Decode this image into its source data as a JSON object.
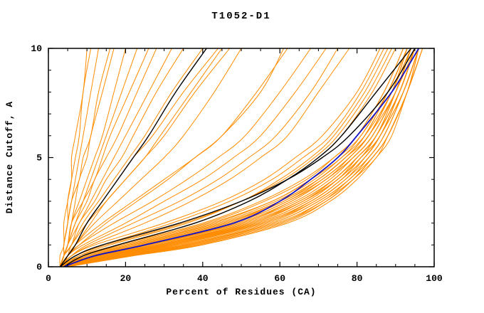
{
  "chart_data": {
    "type": "line",
    "title": "T1052-D1",
    "xlabel": "Percent of Residues (CA)",
    "ylabel": "Distance Cutoff, A",
    "xlim": [
      0,
      100
    ],
    "ylim": [
      0,
      10
    ],
    "x_ticks": [
      0,
      20,
      40,
      60,
      80,
      100
    ],
    "x_minor_step": 5,
    "y_ticks": [
      0,
      5,
      10
    ],
    "y_minor_step": 1,
    "grid": false,
    "legend": "none",
    "colors": {
      "orange": "#ff8c00",
      "black": "#000000",
      "blue": "#1212c8",
      "axis": "#000000",
      "background": "#ffffff"
    },
    "cutoffs": [
      0,
      0.5,
      1,
      2,
      3,
      4,
      5,
      6,
      8,
      10
    ],
    "series": {
      "orange_curves": [
        [
          4,
          14,
          28,
          52,
          65,
          74,
          80,
          85,
          91,
          95
        ],
        [
          4,
          12,
          25,
          48,
          62,
          71,
          78,
          83,
          89,
          94
        ],
        [
          4,
          16,
          32,
          55,
          68,
          76,
          82,
          86,
          92,
          96
        ],
        [
          3,
          10,
          22,
          45,
          60,
          70,
          77,
          82,
          88,
          93
        ],
        [
          5,
          18,
          35,
          58,
          70,
          78,
          83,
          87,
          92,
          96
        ],
        [
          4,
          13,
          27,
          50,
          64,
          73,
          79,
          84,
          90,
          95
        ],
        [
          4,
          15,
          30,
          54,
          67,
          75,
          81,
          85,
          91,
          95
        ],
        [
          3,
          9,
          20,
          42,
          58,
          68,
          75,
          81,
          88,
          93
        ],
        [
          5,
          20,
          38,
          60,
          72,
          79,
          84,
          88,
          93,
          97
        ],
        [
          4,
          11,
          24,
          47,
          61,
          71,
          78,
          83,
          90,
          94
        ],
        [
          4,
          17,
          33,
          56,
          69,
          77,
          82,
          86,
          92,
          96
        ],
        [
          3,
          8,
          18,
          40,
          55,
          66,
          74,
          80,
          87,
          92
        ],
        [
          5,
          22,
          40,
          62,
          73,
          80,
          85,
          89,
          93,
          97
        ],
        [
          4,
          14,
          29,
          53,
          66,
          75,
          81,
          85,
          91,
          95
        ],
        [
          4,
          12,
          26,
          49,
          63,
          72,
          79,
          84,
          90,
          94
        ],
        [
          3,
          10,
          21,
          44,
          59,
          69,
          76,
          82,
          89,
          93
        ],
        [
          5,
          19,
          36,
          59,
          71,
          78,
          84,
          88,
          93,
          96
        ],
        [
          4,
          16,
          31,
          55,
          68,
          76,
          82,
          86,
          91,
          95
        ],
        [
          4,
          13,
          28,
          51,
          65,
          74,
          80,
          85,
          90,
          94
        ],
        [
          3,
          11,
          23,
          46,
          61,
          70,
          77,
          83,
          89,
          94
        ],
        [
          5,
          21,
          39,
          61,
          72,
          79,
          85,
          88,
          93,
          97
        ],
        [
          4,
          15,
          31,
          54,
          67,
          75,
          81,
          86,
          91,
          95
        ],
        [
          4,
          14,
          30,
          53,
          66,
          74,
          80,
          85,
          90,
          94
        ],
        [
          5,
          17,
          34,
          57,
          69,
          77,
          83,
          87,
          92,
          96
        ],
        [
          4,
          13,
          26,
          50,
          63,
          72,
          79,
          84,
          90,
          94
        ],
        [
          3,
          12,
          25,
          48,
          62,
          72,
          78,
          83,
          89,
          93
        ],
        [
          5,
          18,
          36,
          58,
          70,
          78,
          83,
          87,
          92,
          96
        ],
        [
          4,
          16,
          32,
          56,
          68,
          76,
          81,
          86,
          91,
          95
        ],
        [
          4,
          11,
          23,
          46,
          60,
          70,
          77,
          82,
          88,
          93
        ],
        [
          5,
          20,
          37,
          60,
          71,
          79,
          84,
          88,
          93,
          96
        ],
        [
          4,
          15,
          29,
          52,
          66,
          75,
          80,
          85,
          91,
          95
        ],
        [
          3,
          9,
          19,
          41,
          56,
          67,
          74,
          80,
          87,
          92
        ],
        [
          4,
          10,
          21,
          43,
          58,
          68,
          76,
          81,
          88,
          93
        ],
        [
          3,
          7,
          15,
          35,
          50,
          60,
          68,
          74,
          82,
          88
        ],
        [
          4,
          9,
          18,
          38,
          52,
          62,
          70,
          76,
          84,
          90
        ],
        [
          3,
          6,
          12,
          30,
          45,
          56,
          64,
          71,
          80,
          86
        ],
        [
          4,
          8,
          16,
          36,
          50,
          61,
          69,
          75,
          83,
          89
        ],
        [
          3,
          7,
          14,
          32,
          47,
          58,
          66,
          73,
          81,
          87
        ],
        [
          3,
          6,
          10,
          22,
          34,
          44,
          52,
          59,
          68,
          75
        ],
        [
          3,
          5,
          9,
          20,
          30,
          40,
          48,
          55,
          64,
          72
        ],
        [
          3,
          6,
          11,
          25,
          37,
          47,
          55,
          62,
          70,
          78
        ],
        [
          3,
          5,
          8,
          17,
          27,
          36,
          44,
          51,
          60,
          68
        ],
        [
          3,
          5,
          7,
          14,
          22,
          30,
          38,
          45,
          54,
          62
        ],
        [
          3,
          5,
          8,
          15,
          23,
          31,
          38,
          45,
          55,
          61
        ],
        [
          3,
          5,
          7,
          12,
          18,
          24,
          30,
          35,
          43,
          50
        ],
        [
          3,
          4,
          6,
          10,
          15,
          20,
          25,
          29,
          37,
          45
        ],
        [
          3,
          4,
          5,
          7,
          9,
          11,
          13,
          15,
          19,
          23
        ],
        [
          3,
          4,
          5,
          8,
          11,
          14,
          17,
          20,
          26,
          32
        ],
        [
          3,
          4,
          6,
          9,
          13,
          17,
          21,
          25,
          32,
          40
        ],
        [
          3,
          4,
          5,
          6,
          8,
          10,
          12,
          14,
          17,
          20
        ],
        [
          3,
          4,
          4,
          5,
          6,
          8,
          9,
          11,
          13,
          16
        ],
        [
          3,
          5,
          6,
          10,
          14,
          18,
          22,
          27,
          35,
          44
        ],
        [
          3,
          4,
          5,
          7,
          10,
          12,
          15,
          18,
          23,
          28
        ],
        [
          3,
          4,
          4,
          5,
          6,
          7,
          8,
          9,
          11,
          13
        ],
        [
          4,
          5,
          7,
          11,
          15,
          20,
          25,
          30,
          38,
          47
        ],
        [
          3,
          4,
          5,
          6,
          7,
          8,
          10,
          11,
          14,
          17
        ],
        [
          3,
          4,
          5,
          6,
          9,
          12,
          14,
          16,
          21,
          26
        ],
        [
          3,
          4,
          6,
          8,
          12,
          15,
          19,
          22,
          28,
          35
        ],
        [
          3,
          4,
          4,
          5,
          5,
          6,
          7,
          8,
          9,
          11
        ],
        [
          3,
          3,
          4,
          4,
          5,
          6,
          6,
          7,
          9,
          10
        ]
      ],
      "black_curves": [
        [
          3,
          5,
          7,
          10,
          14,
          18,
          22,
          26,
          33,
          41
        ],
        [
          4,
          9,
          18,
          38,
          52,
          62,
          70,
          76,
          85,
          94
        ],
        [
          3,
          7,
          14,
          34,
          50,
          62,
          71,
          78,
          88,
          95
        ]
      ],
      "blue_curves": [
        [
          4,
          12,
          25,
          48,
          60,
          68,
          75,
          80,
          89,
          96
        ]
      ]
    }
  }
}
